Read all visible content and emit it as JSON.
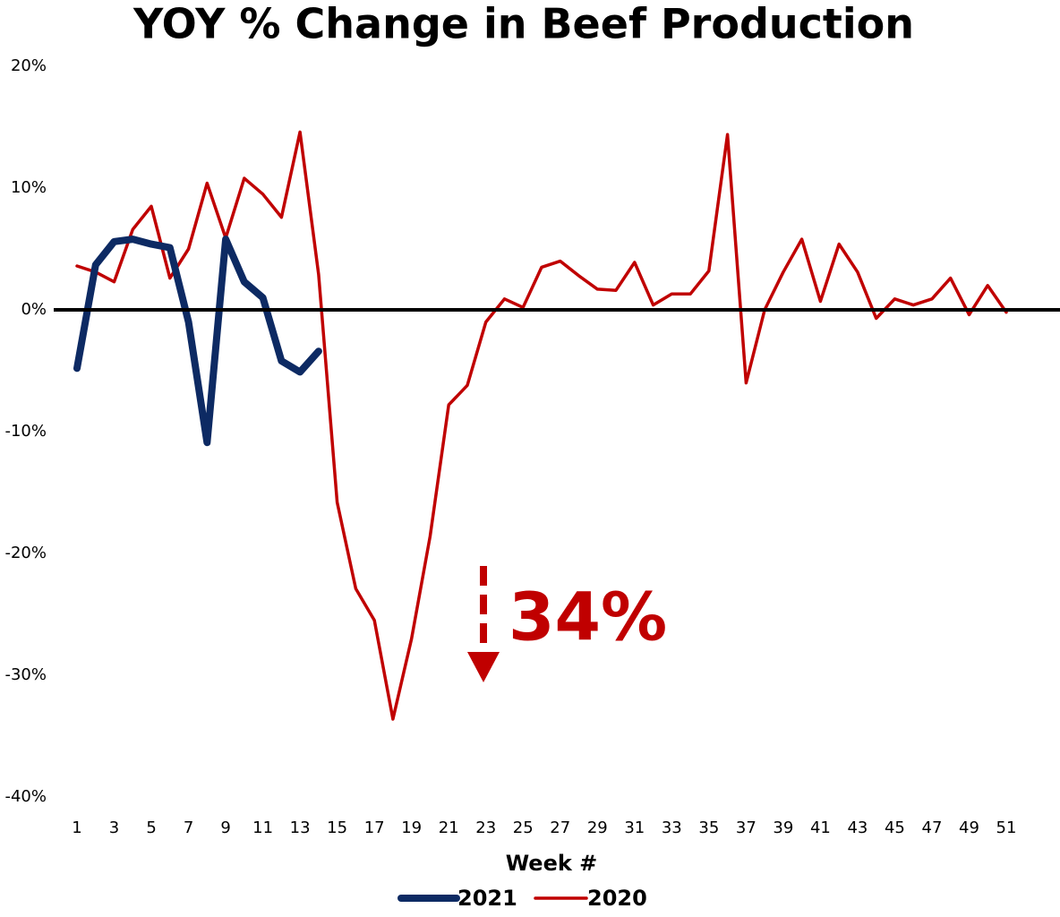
{
  "chart_data": {
    "type": "line",
    "title": "YOY % Change in Beef Production",
    "x_label": "Week #",
    "annotation": "34%",
    "categories": [
      "1",
      null,
      "3",
      null,
      "5",
      null,
      "7",
      null,
      "9",
      null,
      "11",
      null,
      "13",
      null,
      "15",
      null,
      "17",
      null,
      "19",
      null,
      "21",
      null,
      "23",
      null,
      "25",
      null,
      "27",
      null,
      "29",
      null,
      "31",
      null,
      "33",
      null,
      "35",
      null,
      "37",
      null,
      "39",
      null,
      "41",
      null,
      "43",
      null,
      "45",
      null,
      "47",
      null,
      "49",
      null,
      "51",
      null
    ],
    "ylim": [
      -40,
      20
    ],
    "yticks": [
      {
        "value": -40,
        "label": "-40%"
      },
      {
        "value": -30,
        "label": "-30%"
      },
      {
        "value": -20,
        "label": "-20%"
      },
      {
        "value": -10,
        "label": "-10%"
      },
      {
        "value": 0,
        "label": "0%"
      },
      {
        "value": 10,
        "label": "10%"
      },
      {
        "value": 20,
        "label": "20%"
      }
    ],
    "grid": false,
    "legend": "bottom",
    "series": [
      {
        "name": "2021",
        "color": "#0d2a63",
        "width": 8,
        "values": [
          -4.8,
          3.7,
          5.6,
          5.8,
          5.4,
          5.1,
          -1.0,
          -10.9,
          5.8,
          2.3,
          1.0,
          -4.2,
          -5.1,
          -3.4,
          null,
          null,
          null,
          null,
          null,
          null,
          null,
          null,
          null,
          null,
          null,
          null,
          null,
          null,
          null,
          null,
          null,
          null,
          null,
          null,
          null,
          null,
          null,
          null,
          null,
          null,
          null,
          null,
          null,
          null,
          null,
          null,
          null,
          null,
          null,
          null,
          null,
          null
        ]
      },
      {
        "name": "2020",
        "color": "#c00000",
        "width": 3.5,
        "values": [
          3.6,
          3.1,
          2.3,
          6.6,
          8.5,
          2.6,
          5.0,
          10.4,
          5.9,
          10.8,
          9.5,
          7.6,
          14.6,
          2.9,
          -15.8,
          -22.9,
          -25.5,
          -33.6,
          -27.0,
          -18.6,
          -7.8,
          -6.2,
          -1.0,
          0.9,
          0.2,
          3.5,
          4.0,
          2.8,
          1.7,
          1.6,
          3.9,
          0.4,
          1.3,
          1.3,
          3.2,
          14.4,
          -6.0,
          0.0,
          3.1,
          5.8,
          0.7,
          5.4,
          3.1,
          -0.7,
          0.9,
          0.4,
          0.9,
          2.6,
          -0.4,
          2.0,
          -0.2,
          null
        ]
      }
    ]
  }
}
